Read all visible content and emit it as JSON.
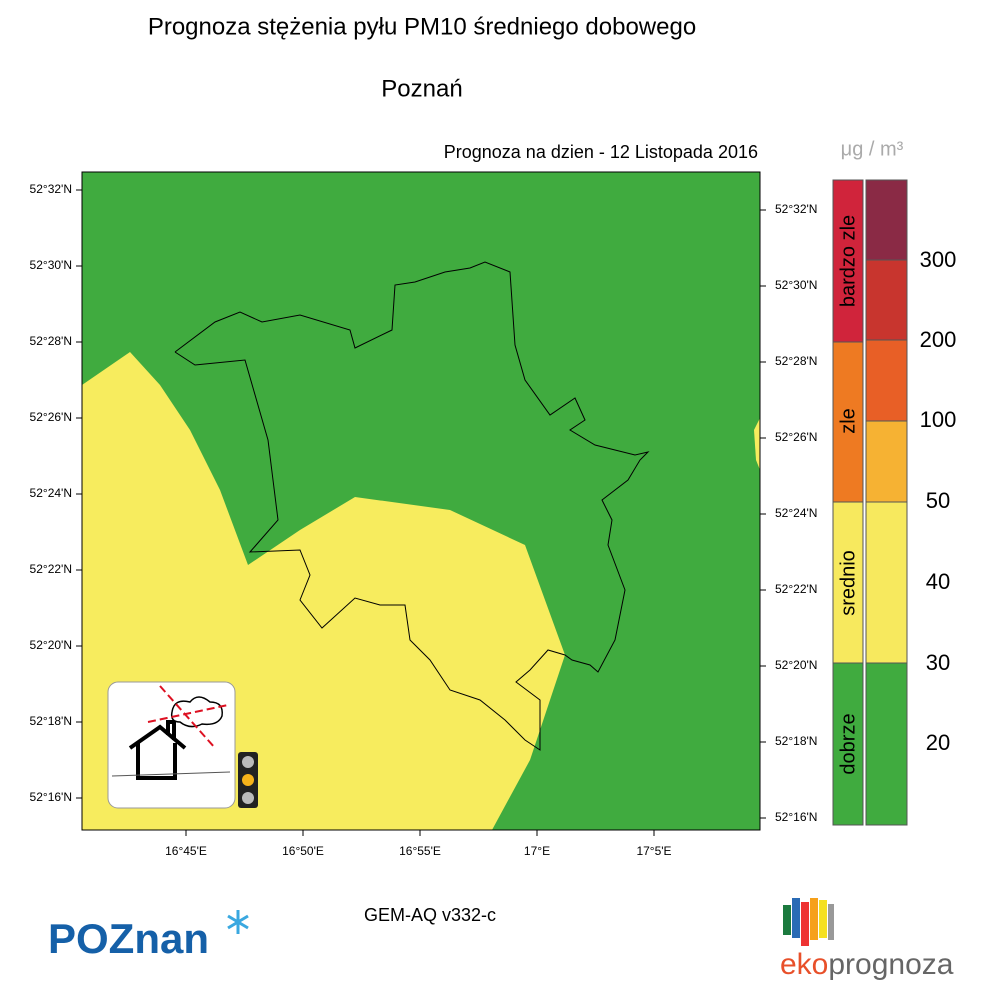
{
  "header": {
    "title": "Prognoza stężenia pyłu PM10 średniego dobowego",
    "subtitle": "Poznań",
    "forecast_date": "Prognoza na dzien -  12 Listopada 2016"
  },
  "map": {
    "lat_labels_left": [
      "52°32'N",
      "52°30'N",
      "52°28'N",
      "52°26'N",
      "52°24'N",
      "52°22'N",
      "52°20'N",
      "52°18'N",
      "52°16'N"
    ],
    "lat_labels_right": [
      "52°32'N",
      "52°30'N",
      "52°28'N",
      "52°26'N",
      "52°24'N",
      "52°22'N",
      "52°20'N",
      "52°18'N",
      "52°16'N"
    ],
    "lon_labels": [
      "16°45'E",
      "16°50'E",
      "16°55'E",
      "17°E",
      "17°5'E"
    ]
  },
  "legend": {
    "unit": "μg / m³",
    "categories": [
      "bardzo zle",
      "zle",
      "srednio",
      "dobrze"
    ],
    "levels": [
      "300",
      "200",
      "100",
      "50",
      "40",
      "30",
      "20"
    ]
  },
  "footer": {
    "model": "GEM-AQ v332-c",
    "logo_left": "POZnan",
    "logo_right_a": "eko",
    "logo_right_b": "prognoza"
  }
}
